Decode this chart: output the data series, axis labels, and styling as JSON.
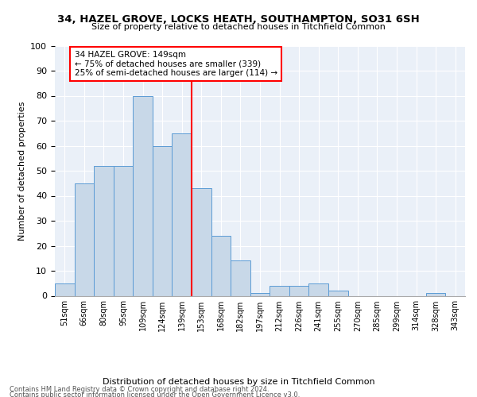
{
  "title": "34, HAZEL GROVE, LOCKS HEATH, SOUTHAMPTON, SO31 6SH",
  "subtitle": "Size of property relative to detached houses in Titchfield Common",
  "xlabel": "Distribution of detached houses by size in Titchfield Common",
  "ylabel": "Number of detached properties",
  "footnote1": "Contains HM Land Registry data © Crown copyright and database right 2024.",
  "footnote2": "Contains public sector information licensed under the Open Government Licence v3.0.",
  "bar_labels": [
    "51sqm",
    "66sqm",
    "80sqm",
    "95sqm",
    "109sqm",
    "124sqm",
    "139sqm",
    "153sqm",
    "168sqm",
    "182sqm",
    "197sqm",
    "212sqm",
    "226sqm",
    "241sqm",
    "255sqm",
    "270sqm",
    "285sqm",
    "299sqm",
    "314sqm",
    "328sqm",
    "343sqm"
  ],
  "bar_values": [
    5,
    45,
    52,
    52,
    80,
    60,
    65,
    43,
    24,
    14,
    1,
    4,
    4,
    5,
    2,
    0,
    0,
    0,
    0,
    1,
    0
  ],
  "bar_color": "#c8d8e8",
  "bar_edge_color": "#5b9bd5",
  "vline_color": "red",
  "annotation_title": "34 HAZEL GROVE: 149sqm",
  "annotation_line1": "← 75% of detached houses are smaller (339)",
  "annotation_line2": "25% of semi-detached houses are larger (114) →",
  "annotation_box_color": "white",
  "annotation_box_edge_color": "red",
  "ylim": [
    0,
    100
  ],
  "yticks": [
    0,
    10,
    20,
    30,
    40,
    50,
    60,
    70,
    80,
    90,
    100
  ],
  "bg_color": "#eaf0f8",
  "vline_bar_index": 6.5
}
